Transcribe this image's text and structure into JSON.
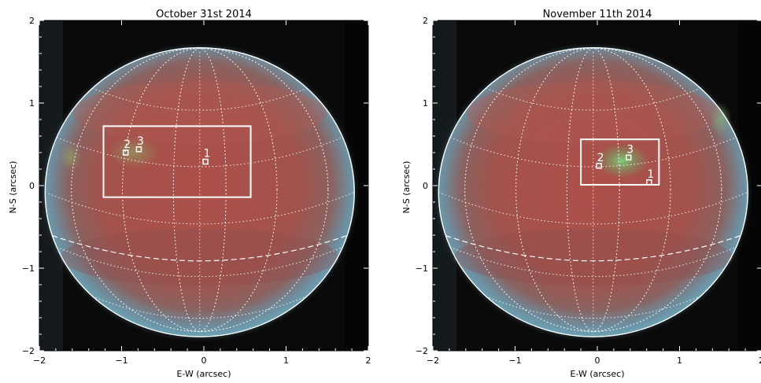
{
  "chart_data": [
    {
      "type": "image",
      "title": "October 31st 2014",
      "xlabel": "E-W (arcsec)",
      "ylabel": "N-S (arcsec)",
      "xlim": [
        -2,
        2
      ],
      "ylim": [
        -2,
        2
      ],
      "x_ticks": [
        "−2",
        "−1",
        "0",
        "1",
        "2"
      ],
      "y_ticks": [
        "−2",
        "−1",
        "0",
        "1",
        "2"
      ],
      "disk": {
        "center": [
          -0.05,
          -0.08
        ],
        "radius_x": 1.88,
        "radius_y": 1.75
      },
      "region_box": {
        "x": [
          -1.22,
          0.57
        ],
        "y": [
          -0.14,
          0.72
        ]
      },
      "markers": [
        {
          "label": "1",
          "x": 0.02,
          "y": 0.29
        },
        {
          "label": "2",
          "x": -0.95,
          "y": 0.4
        },
        {
          "label": "3",
          "x": -0.79,
          "y": 0.44
        }
      ],
      "colors": {
        "disk": "#a8504a",
        "limb": "#6f93a8",
        "background": "#0a0a0a",
        "overlay": "#ffffff"
      }
    },
    {
      "type": "image",
      "title": "November 11th 2014",
      "xlabel": "E-W (arcsec)",
      "ylabel": "N-S (arcsec)",
      "xlim": [
        -2,
        2
      ],
      "ylim": [
        -2,
        2
      ],
      "x_ticks": [
        "−2",
        "−1",
        "0",
        "1",
        "2"
      ],
      "y_ticks": [
        "−2",
        "−1",
        "0",
        "1",
        "2"
      ],
      "disk": {
        "center": [
          -0.05,
          -0.08
        ],
        "radius_x": 1.88,
        "radius_y": 1.75
      },
      "region_box": {
        "x": [
          -0.2,
          0.75
        ],
        "y": [
          0.01,
          0.56
        ]
      },
      "markers": [
        {
          "label": "1",
          "x": 0.63,
          "y": 0.04
        },
        {
          "label": "2",
          "x": 0.02,
          "y": 0.24
        },
        {
          "label": "3",
          "x": 0.38,
          "y": 0.34
        }
      ],
      "colors": {
        "disk": "#a8504a",
        "limb": "#6f93a8",
        "background": "#0a0a0a",
        "overlay": "#ffffff"
      }
    }
  ]
}
